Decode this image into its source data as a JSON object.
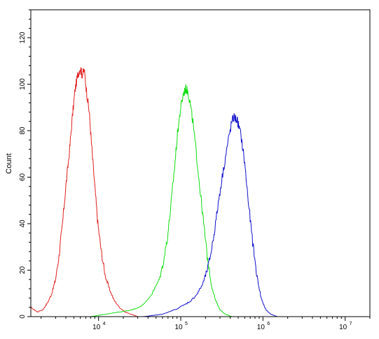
{
  "chart_data": {
    "type": "line",
    "title": "",
    "xlabel": "",
    "ylabel": "Count",
    "x_scale": "log",
    "xlim": [
      1500,
      20000000
    ],
    "ylim": [
      0,
      132
    ],
    "grid": false,
    "legend": "none",
    "x_ticks": [
      {
        "value": 10000,
        "label": "10",
        "exp": "4"
      },
      {
        "value": 100000,
        "label": "10",
        "exp": "5"
      },
      {
        "value": 1000000,
        "label": "10",
        "exp": "6"
      },
      {
        "value": 10000000,
        "label": "10",
        "exp": "7"
      }
    ],
    "y_ticks": [
      0,
      20,
      40,
      60,
      80,
      100,
      120
    ],
    "series": [
      {
        "color": "#e02020",
        "x": [
          1500,
          1800,
          2100,
          2400,
          2700,
          3000,
          3300,
          3600,
          4000,
          4400,
          4800,
          5200,
          5600,
          6000,
          6300,
          6700,
          7200,
          7700,
          8300,
          9000,
          9800,
          10800,
          12000,
          13500,
          15500,
          18000,
          21000,
          25000,
          30000
        ],
        "y": [
          4,
          2,
          3,
          6,
          10,
          16,
          26,
          38,
          56,
          70,
          86,
          98,
          104,
          107,
          104,
          106,
          96,
          88,
          72,
          56,
          40,
          28,
          18,
          12,
          7,
          4,
          2,
          1,
          0
        ]
      },
      {
        "color": "#10dd10",
        "x": [
          8000,
          12000,
          18000,
          26000,
          35000,
          45000,
          55000,
          62000,
          70000,
          78000,
          85000,
          92000,
          100000,
          108000,
          115000,
          122000,
          130000,
          140000,
          155000,
          170000,
          190000,
          210000,
          235000,
          265000,
          300000,
          350000,
          420000
        ],
        "y": [
          0,
          1,
          2,
          3,
          5,
          10,
          16,
          24,
          36,
          52,
          66,
          80,
          90,
          96,
          98,
          97,
          92,
          84,
          70,
          56,
          40,
          26,
          14,
          7,
          3,
          1,
          0
        ]
      },
      {
        "color": "#1010cc",
        "x": [
          35000,
          60000,
          85000,
          110000,
          135000,
          160000,
          185000,
          210000,
          235000,
          265000,
          300000,
          340000,
          380000,
          420000,
          450000,
          490000,
          540000,
          600000,
          670000,
          750000,
          840000,
          950000,
          1080000,
          1250000,
          1500000
        ],
        "y": [
          0,
          1,
          3,
          5,
          7,
          10,
          14,
          20,
          28,
          40,
          54,
          66,
          76,
          84,
          86,
          84,
          78,
          66,
          48,
          32,
          18,
          8,
          3,
          1,
          0
        ]
      }
    ]
  }
}
